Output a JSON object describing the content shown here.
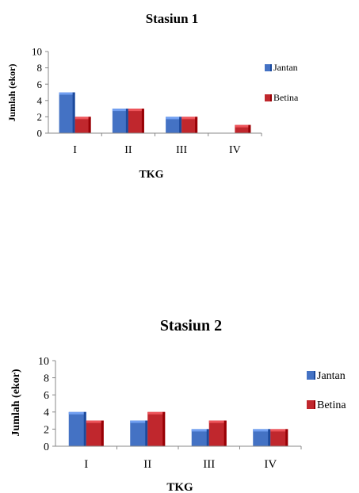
{
  "chart_data": [
    {
      "type": "bar",
      "title": "Stasiun 1",
      "xlabel": "TKG",
      "ylabel": "Jumlah (ekor)",
      "categories": [
        "I",
        "II",
        "III",
        "IV"
      ],
      "ylim": [
        0,
        10
      ],
      "yticks": [
        0,
        2,
        4,
        6,
        8,
        10
      ],
      "grid": false,
      "legend_position": "right",
      "series": [
        {
          "name": "Jantan",
          "values": [
            5,
            3,
            2,
            0
          ],
          "color": "#4472C4"
        },
        {
          "name": "Betina",
          "values": [
            2,
            3,
            2,
            1
          ],
          "color": "#C0272D"
        }
      ]
    },
    {
      "type": "bar",
      "title": "Stasiun 2",
      "xlabel": "TKG",
      "ylabel": "Jumlah (ekor)",
      "categories": [
        "I",
        "II",
        "III",
        "IV"
      ],
      "ylim": [
        0,
        10
      ],
      "yticks": [
        0,
        2,
        4,
        6,
        8,
        10
      ],
      "grid": false,
      "legend_position": "right",
      "series": [
        {
          "name": "Jantan",
          "values": [
            4,
            3,
            2,
            2
          ],
          "color": "#4472C4"
        },
        {
          "name": "Betina",
          "values": [
            3,
            4,
            3,
            2
          ],
          "color": "#C0272D"
        }
      ]
    }
  ]
}
